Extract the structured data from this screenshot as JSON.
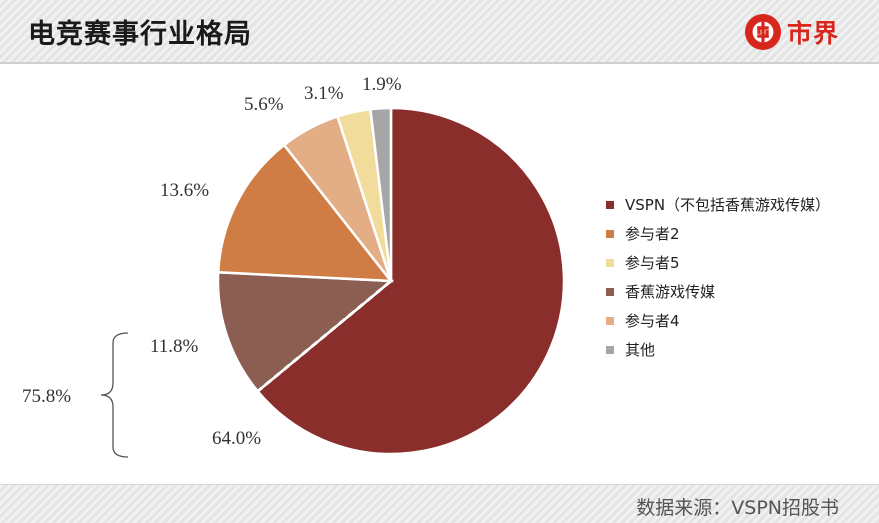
{
  "header": {
    "title": "电竞赛事行业格局",
    "logo_text": "市界"
  },
  "footer": {
    "source": "数据来源：VSPN招股书"
  },
  "chart_data": {
    "type": "pie",
    "title": "",
    "slices": [
      {
        "label": "VSPN（不包括香蕉游戏传媒）",
        "value": 64.0,
        "value_label": "64.0%",
        "color": "#8a2e2b"
      },
      {
        "label": "香蕉游戏传媒",
        "value": 11.8,
        "value_label": "11.8%",
        "color": "#8c5e52"
      },
      {
        "label": "参与者2",
        "value": 13.6,
        "value_label": "13.6%",
        "color": "#d07d45"
      },
      {
        "label": "参与者4",
        "value": 5.6,
        "value_label": "5.6%",
        "color": "#e3ad86"
      },
      {
        "label": "参与者5",
        "value": 3.1,
        "value_label": "3.1%",
        "color": "#f1dc9b"
      },
      {
        "label": "其他",
        "value": 1.9,
        "value_label": "1.9%",
        "color": "#a6a6a6"
      }
    ],
    "legend": [
      {
        "label": "VSPN（不包括香蕉游戏传媒）",
        "color": "#8a2e2b"
      },
      {
        "label": "参与者2",
        "color": "#d07d45"
      },
      {
        "label": "参与者5",
        "color": "#f1dc9b"
      },
      {
        "label": "香蕉游戏传媒",
        "color": "#8c5e52"
      },
      {
        "label": "参与者4",
        "color": "#e3ad86"
      },
      {
        "label": "其他",
        "color": "#a6a6a6"
      }
    ],
    "legend_position": "right",
    "bracket_annotation": {
      "label": "75.8%",
      "spans": [
        "VSPN（不包括香蕉游戏传媒）",
        "香蕉游戏传媒"
      ]
    }
  }
}
